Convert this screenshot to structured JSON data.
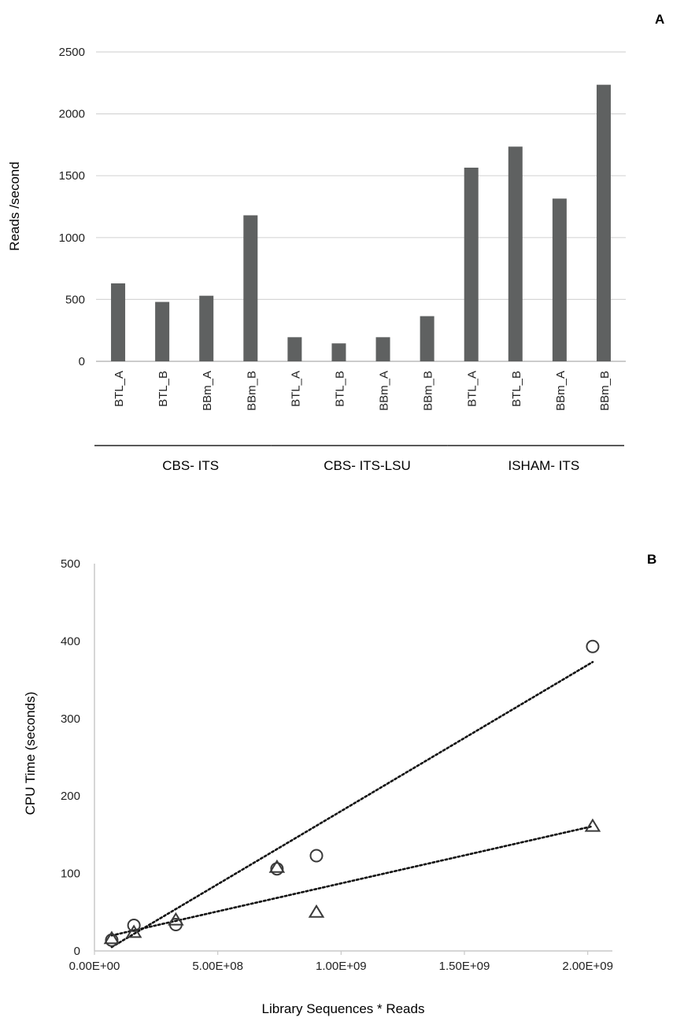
{
  "chart_data": [
    {
      "panel": "A",
      "type": "bar",
      "ylabel": "Reads /second",
      "ylim": [
        0,
        2500
      ],
      "yticks": [
        "0",
        "500",
        "1000",
        "1500",
        "2000",
        "2500"
      ],
      "grid": true,
      "bar_color": "#5f6161",
      "categories": [
        "BTL_A",
        "BTL_B",
        "BBm_A",
        "BBm_B",
        "BTL_A",
        "BTL_B",
        "BBm_A",
        "BBm_B",
        "BTL_A",
        "BTL_B",
        "BBm_A",
        "BBm_B"
      ],
      "values": [
        630,
        480,
        530,
        1180,
        195,
        145,
        195,
        365,
        1565,
        1735,
        1315,
        2235
      ],
      "groups": [
        {
          "label": "CBS- ITS",
          "start": 0,
          "end": 3
        },
        {
          "label": "CBS- ITS-LSU",
          "start": 4,
          "end": 7
        },
        {
          "label": "ISHAM- ITS",
          "start": 8,
          "end": 11
        }
      ]
    },
    {
      "panel": "B",
      "type": "scatter",
      "xlabel": "Library Sequences * Reads",
      "ylabel": "CPU Time (seconds)",
      "xlim": [
        0,
        2100000000
      ],
      "ylim": [
        0,
        500
      ],
      "xticks": [
        {
          "value": 0,
          "label": "0.00E+00"
        },
        {
          "value": 500000000,
          "label": "5.00E+08"
        },
        {
          "value": 1000000000,
          "label": "1.00E+09"
        },
        {
          "value": 1500000000,
          "label": "1.50E+09"
        },
        {
          "value": 2000000000,
          "label": "2.00E+09"
        }
      ],
      "yticks": [
        "0",
        "100",
        "200",
        "300",
        "400",
        "500"
      ],
      "series": [
        {
          "marker": "circle",
          "x": [
            70000000,
            160000000,
            330000000,
            740000000,
            900000000,
            2020000000
          ],
          "y": [
            14,
            33,
            34,
            106,
            123,
            393
          ],
          "trendline": {
            "x": [
              70000000,
              2020000000
            ],
            "y": [
              5,
              373
            ]
          }
        },
        {
          "marker": "triangle",
          "x": [
            70000000,
            160000000,
            330000000,
            740000000,
            900000000,
            2020000000
          ],
          "y": [
            16,
            24,
            40,
            108,
            50,
            161
          ],
          "trendline": {
            "x": [
              70000000,
              2020000000
            ],
            "y": [
              20,
              161
            ]
          }
        }
      ]
    }
  ]
}
